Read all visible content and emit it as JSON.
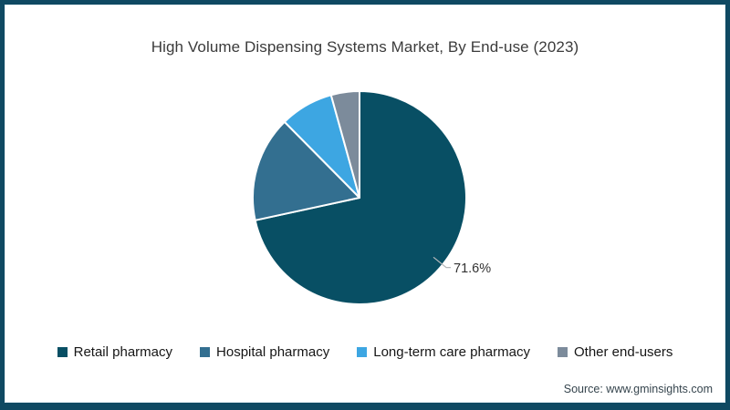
{
  "title": "High Volume Dispensing Systems Market, By End-use (2023)",
  "source_note": "Source: www.gminsights.com",
  "colors": {
    "frame_border": "#0f4962",
    "inner_hairline": "#dfeaf0",
    "leader_line": "#b5b8ba",
    "label_text": "#333333"
  },
  "chart_data": {
    "type": "pie",
    "title": "High Volume Dispensing Systems Market, By End-use (2023)",
    "categories": [
      "Retail pharmacy",
      "Hospital pharmacy",
      "Long-term care pharmacy",
      "Other end-users"
    ],
    "values": [
      71.6,
      16.0,
      8.1,
      4.3
    ],
    "colors": [
      "#084f64",
      "#336f90",
      "#3da6e2",
      "#7c8b9b"
    ],
    "start_angle_deg": 0,
    "direction": "clockwise",
    "slice_border_color": "#ffffff",
    "data_label": {
      "category": "Retail pharmacy",
      "text": "71.6%"
    },
    "legend_position": "bottom"
  }
}
